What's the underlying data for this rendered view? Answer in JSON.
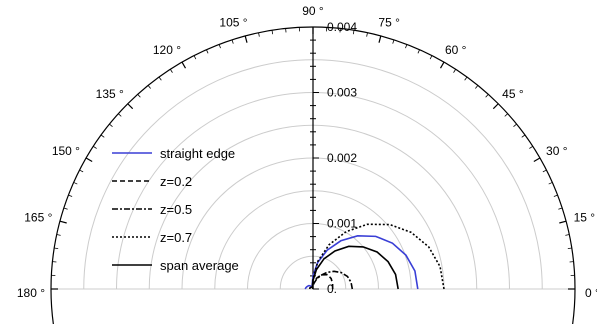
{
  "chart_data": {
    "type": "polar",
    "angular_unit": "°",
    "angle_ticks": [
      0,
      15,
      30,
      45,
      60,
      75,
      90,
      105,
      120,
      135,
      150,
      165,
      180
    ],
    "angle_range": [
      0,
      180
    ],
    "radial_range": [
      0,
      0.004
    ],
    "radial_ticks": [
      "0.",
      "0.001",
      "0.002",
      "0.003",
      "0.004"
    ],
    "radial_gridlines": [
      0.0005,
      0.001,
      0.0015,
      0.002,
      0.0025,
      0.003,
      0.0035
    ],
    "grid": true,
    "legend_position": "left",
    "series": [
      {
        "name": "straight edge",
        "color": "#3a3fd6",
        "style": "solid",
        "points": [
          [
            0,
            0.0016
          ],
          [
            10,
            0.00158
          ],
          [
            20,
            0.00151
          ],
          [
            30,
            0.0014
          ],
          [
            40,
            0.00125
          ],
          [
            50,
            0.00106
          ],
          [
            60,
            0.00085
          ],
          [
            70,
            0.00063
          ],
          [
            80,
            0.00041
          ],
          [
            90,
            0.0002
          ],
          [
            100,
            7e-05
          ],
          [
            110,
            3e-05
          ],
          [
            120,
            4e-05
          ],
          [
            130,
            6e-05
          ],
          [
            140,
            8e-05
          ],
          [
            150,
            9e-05
          ],
          [
            160,
            0.0001
          ],
          [
            170,
            0.00011
          ],
          [
            180,
            0.00012
          ]
        ]
      },
      {
        "name": "z=0.2",
        "color": "#000000",
        "style": "dashed",
        "points": [
          [
            0,
            0.0003
          ],
          [
            15,
            0.00031
          ],
          [
            30,
            0.00032
          ],
          [
            45,
            0.00031
          ],
          [
            60,
            0.00025
          ],
          [
            75,
            0.00016
          ],
          [
            90,
            7e-05
          ],
          [
            105,
            2e-05
          ],
          [
            120,
            1e-05
          ],
          [
            150,
            1e-05
          ],
          [
            180,
            1e-05
          ]
        ]
      },
      {
        "name": "z=0.5",
        "color": "#000000",
        "style": "dashdot",
        "points": [
          [
            0,
            0.0006
          ],
          [
            10,
            0.00059
          ],
          [
            20,
            0.00056
          ],
          [
            30,
            0.0005
          ],
          [
            40,
            0.00042
          ],
          [
            50,
            0.00033
          ],
          [
            60,
            0.00024
          ],
          [
            70,
            0.00016
          ],
          [
            80,
            9e-05
          ],
          [
            90,
            4e-05
          ],
          [
            105,
            1e-05
          ],
          [
            120,
            0.0
          ],
          [
            150,
            0.0
          ],
          [
            180,
            0.0
          ]
        ]
      },
      {
        "name": "z=0.7",
        "color": "#000000",
        "style": "dotted",
        "points": [
          [
            0,
            0.002
          ],
          [
            10,
            0.00197
          ],
          [
            20,
            0.00188
          ],
          [
            30,
            0.00173
          ],
          [
            40,
            0.00153
          ],
          [
            50,
            0.00129
          ],
          [
            60,
            0.00101
          ],
          [
            70,
            0.00072
          ],
          [
            80,
            0.00043
          ],
          [
            90,
            0.00015
          ],
          [
            100,
            4e-05
          ],
          [
            110,
            1e-05
          ],
          [
            120,
            0.0
          ],
          [
            150,
            0.0
          ],
          [
            180,
            0.0
          ]
        ]
      },
      {
        "name": "span average",
        "color": "#000000",
        "style": "solid",
        "points": [
          [
            0,
            0.0013
          ],
          [
            10,
            0.00128
          ],
          [
            20,
            0.00122
          ],
          [
            30,
            0.00113
          ],
          [
            40,
            0.001
          ],
          [
            50,
            0.00085
          ],
          [
            60,
            0.00067
          ],
          [
            70,
            0.00049
          ],
          [
            80,
            0.0003
          ],
          [
            90,
            0.00013
          ],
          [
            100,
            5e-05
          ],
          [
            110,
            3e-05
          ],
          [
            120,
            3e-05
          ],
          [
            140,
            4e-05
          ],
          [
            160,
            5e-05
          ],
          [
            180,
            5e-05
          ]
        ]
      }
    ]
  }
}
